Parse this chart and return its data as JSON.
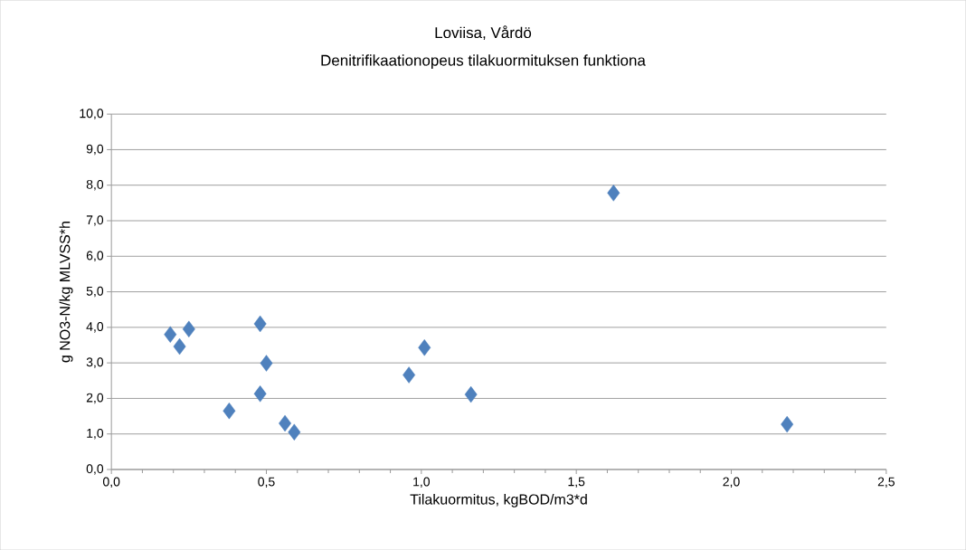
{
  "chart_data": {
    "type": "scatter",
    "title": "Loviisa, Vårdö",
    "subtitle": "Denitrifikaationopeus tilakuormituksen funktiona",
    "xlabel": "Tilakuormitus, kgBOD/m3*d",
    "ylabel": "g NO3-N/kg MLVSS*h",
    "x": [
      0.19,
      0.22,
      0.25,
      0.38,
      0.48,
      0.48,
      0.5,
      0.56,
      0.59,
      0.96,
      1.01,
      1.16,
      1.62,
      2.18
    ],
    "values": [
      3.8,
      3.46,
      3.95,
      1.65,
      4.1,
      2.13,
      2.99,
      1.3,
      1.05,
      2.66,
      3.43,
      2.11,
      7.78,
      1.27
    ],
    "color": "#4f81bd",
    "marker": "diamond",
    "grid": "y",
    "xlim": [
      0,
      2.5
    ],
    "ylim": [
      0,
      10
    ],
    "xticks": [
      {
        "value": 0,
        "label": "0,0"
      },
      {
        "value": 0.5,
        "label": "0,5"
      },
      {
        "value": 1,
        "label": "1,0"
      },
      {
        "value": 1.5,
        "label": "1,5"
      },
      {
        "value": 2,
        "label": "2,0"
      },
      {
        "value": 2.5,
        "label": "2,5"
      }
    ],
    "yticks": [
      {
        "value": 0,
        "label": "0,0"
      },
      {
        "value": 1,
        "label": "1,0"
      },
      {
        "value": 2,
        "label": "2,0"
      },
      {
        "value": 3,
        "label": "3,0"
      },
      {
        "value": 4,
        "label": "4,0"
      },
      {
        "value": 5,
        "label": "5,0"
      },
      {
        "value": 6,
        "label": "6,0"
      },
      {
        "value": 7,
        "label": "7,0"
      },
      {
        "value": 8,
        "label": "8,0"
      },
      {
        "value": 9,
        "label": "9,0"
      },
      {
        "value": 10,
        "label": "10,0"
      }
    ]
  }
}
